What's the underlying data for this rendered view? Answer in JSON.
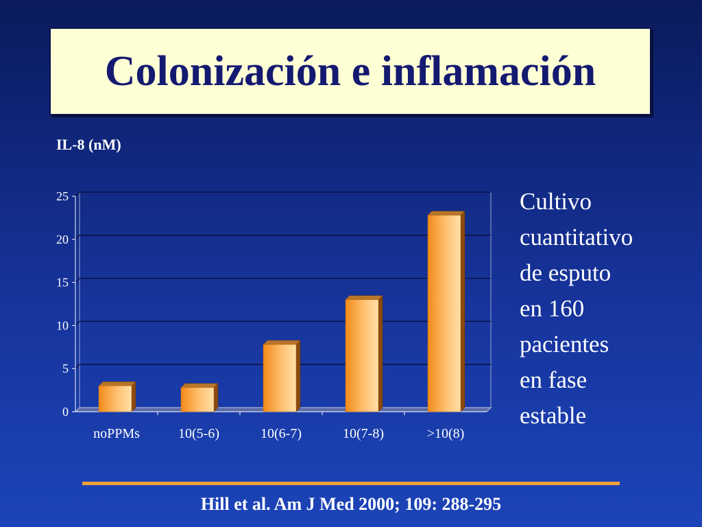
{
  "slide": {
    "title": "Colonización e inflamación",
    "side_text": [
      "Cultivo",
      "cuantitativo",
      "de esputo",
      "en 160",
      "pacientes",
      "en fase",
      "estable"
    ],
    "citation": "Hill et al. Am J Med 2000; 109: 288-295"
  },
  "colors": {
    "background": "#16339a",
    "title_box": "#ffffd6",
    "title_text": "#141a70",
    "bar": "#f7a030",
    "accent_rule": "#f2a03a"
  },
  "chart_data": {
    "type": "bar",
    "title": "",
    "xlabel": "",
    "ylabel": "IL-8 (nM)",
    "categories": [
      "noPPMs",
      "10(5-6)",
      "10(6-7)",
      "10(7-8)",
      ">10(8)"
    ],
    "values": [
      3,
      2.8,
      7.8,
      13,
      22.8
    ],
    "ylim": [
      0,
      25
    ],
    "yticks": [
      0,
      5,
      10,
      15,
      20,
      25
    ],
    "grid": true,
    "legend": "none"
  }
}
